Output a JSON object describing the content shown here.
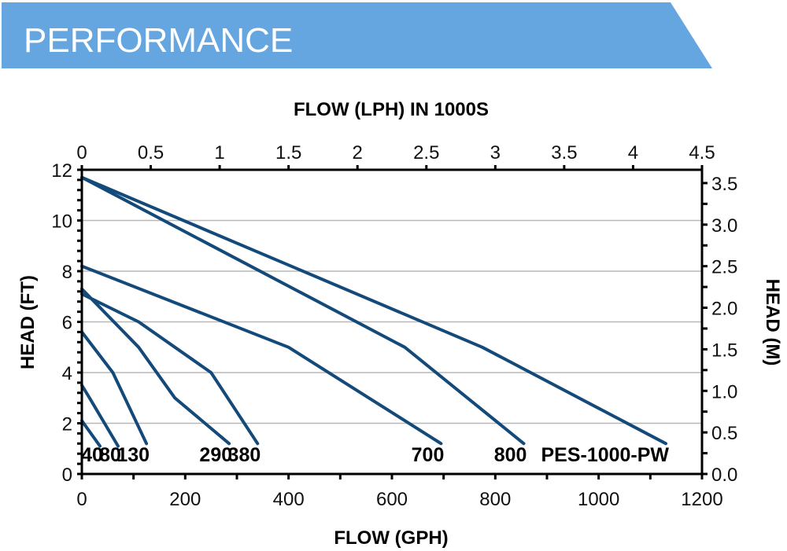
{
  "header": {
    "title": "PERFORMANCE",
    "color": "#66a6e0"
  },
  "chart_data": {
    "type": "line",
    "title": "",
    "xlabel": "FLOW (GPH)",
    "x2label": "FLOW (LPH) IN 1000S",
    "ylabel": "HEAD (FT)",
    "y2label": "HEAD (M)",
    "xlim": [
      0,
      1200
    ],
    "ylim": [
      0,
      12
    ],
    "x2lim": [
      0,
      4.5
    ],
    "y2lim": [
      0,
      3.66
    ],
    "x_ticks": [
      0,
      200,
      400,
      600,
      800,
      1000,
      1200
    ],
    "x_tick_labels": [
      "0",
      "200",
      "400",
      "600",
      "800",
      "1000",
      "1200"
    ],
    "x_minor_ticks": [
      100,
      300,
      500,
      700,
      900,
      1100
    ],
    "y_ticks": [
      0,
      2,
      4,
      6,
      8,
      10,
      12
    ],
    "y_tick_labels": [
      "0",
      "2",
      "4",
      "6",
      "8",
      "10",
      "12"
    ],
    "x2_ticks": [
      0,
      0.5,
      1,
      1.5,
      2,
      2.5,
      3,
      3.5,
      4,
      4.5
    ],
    "x2_tick_labels": [
      "0",
      "0.5",
      "1",
      "1.5",
      "2",
      "2.5",
      "3",
      "3.5",
      "4",
      "4.5"
    ],
    "y2_ticks": [
      0,
      0.5,
      1.0,
      1.5,
      2.0,
      2.5,
      3.0,
      3.5
    ],
    "y2_tick_labels": [
      "0.0",
      "0.5",
      "1.0",
      "1.5",
      "2.0",
      "2.5",
      "3.0",
      "3.5"
    ],
    "grid": true,
    "grid_axis": "y",
    "line_color": "#134a7a",
    "series": [
      {
        "name": "40",
        "points": [
          [
            0,
            2.1
          ],
          [
            35,
            1.1
          ]
        ]
      },
      {
        "name": "80",
        "points": [
          [
            0,
            3.5
          ],
          [
            15,
            3.0
          ],
          [
            70,
            1.1
          ]
        ]
      },
      {
        "name": "130",
        "points": [
          [
            0,
            5.6
          ],
          [
            60,
            4.0
          ],
          [
            125,
            1.2
          ]
        ]
      },
      {
        "name": "290",
        "points": [
          [
            0,
            7.3
          ],
          [
            110,
            5.0
          ],
          [
            180,
            3.0
          ],
          [
            285,
            1.2
          ]
        ]
      },
      {
        "name": "380",
        "points": [
          [
            0,
            7.1
          ],
          [
            110,
            6.0
          ],
          [
            250,
            4.0
          ],
          [
            340,
            1.2
          ]
        ]
      },
      {
        "name": "700",
        "points": [
          [
            0,
            8.2
          ],
          [
            400,
            5.0
          ],
          [
            695,
            1.2
          ]
        ]
      },
      {
        "name": "800",
        "points": [
          [
            0,
            11.7
          ],
          [
            625,
            5.0
          ],
          [
            855,
            1.2
          ]
        ]
      },
      {
        "name": "PES-1000-PW",
        "points": [
          [
            0,
            11.7
          ],
          [
            775,
            5.0
          ],
          [
            1130,
            1.2
          ]
        ]
      }
    ]
  }
}
